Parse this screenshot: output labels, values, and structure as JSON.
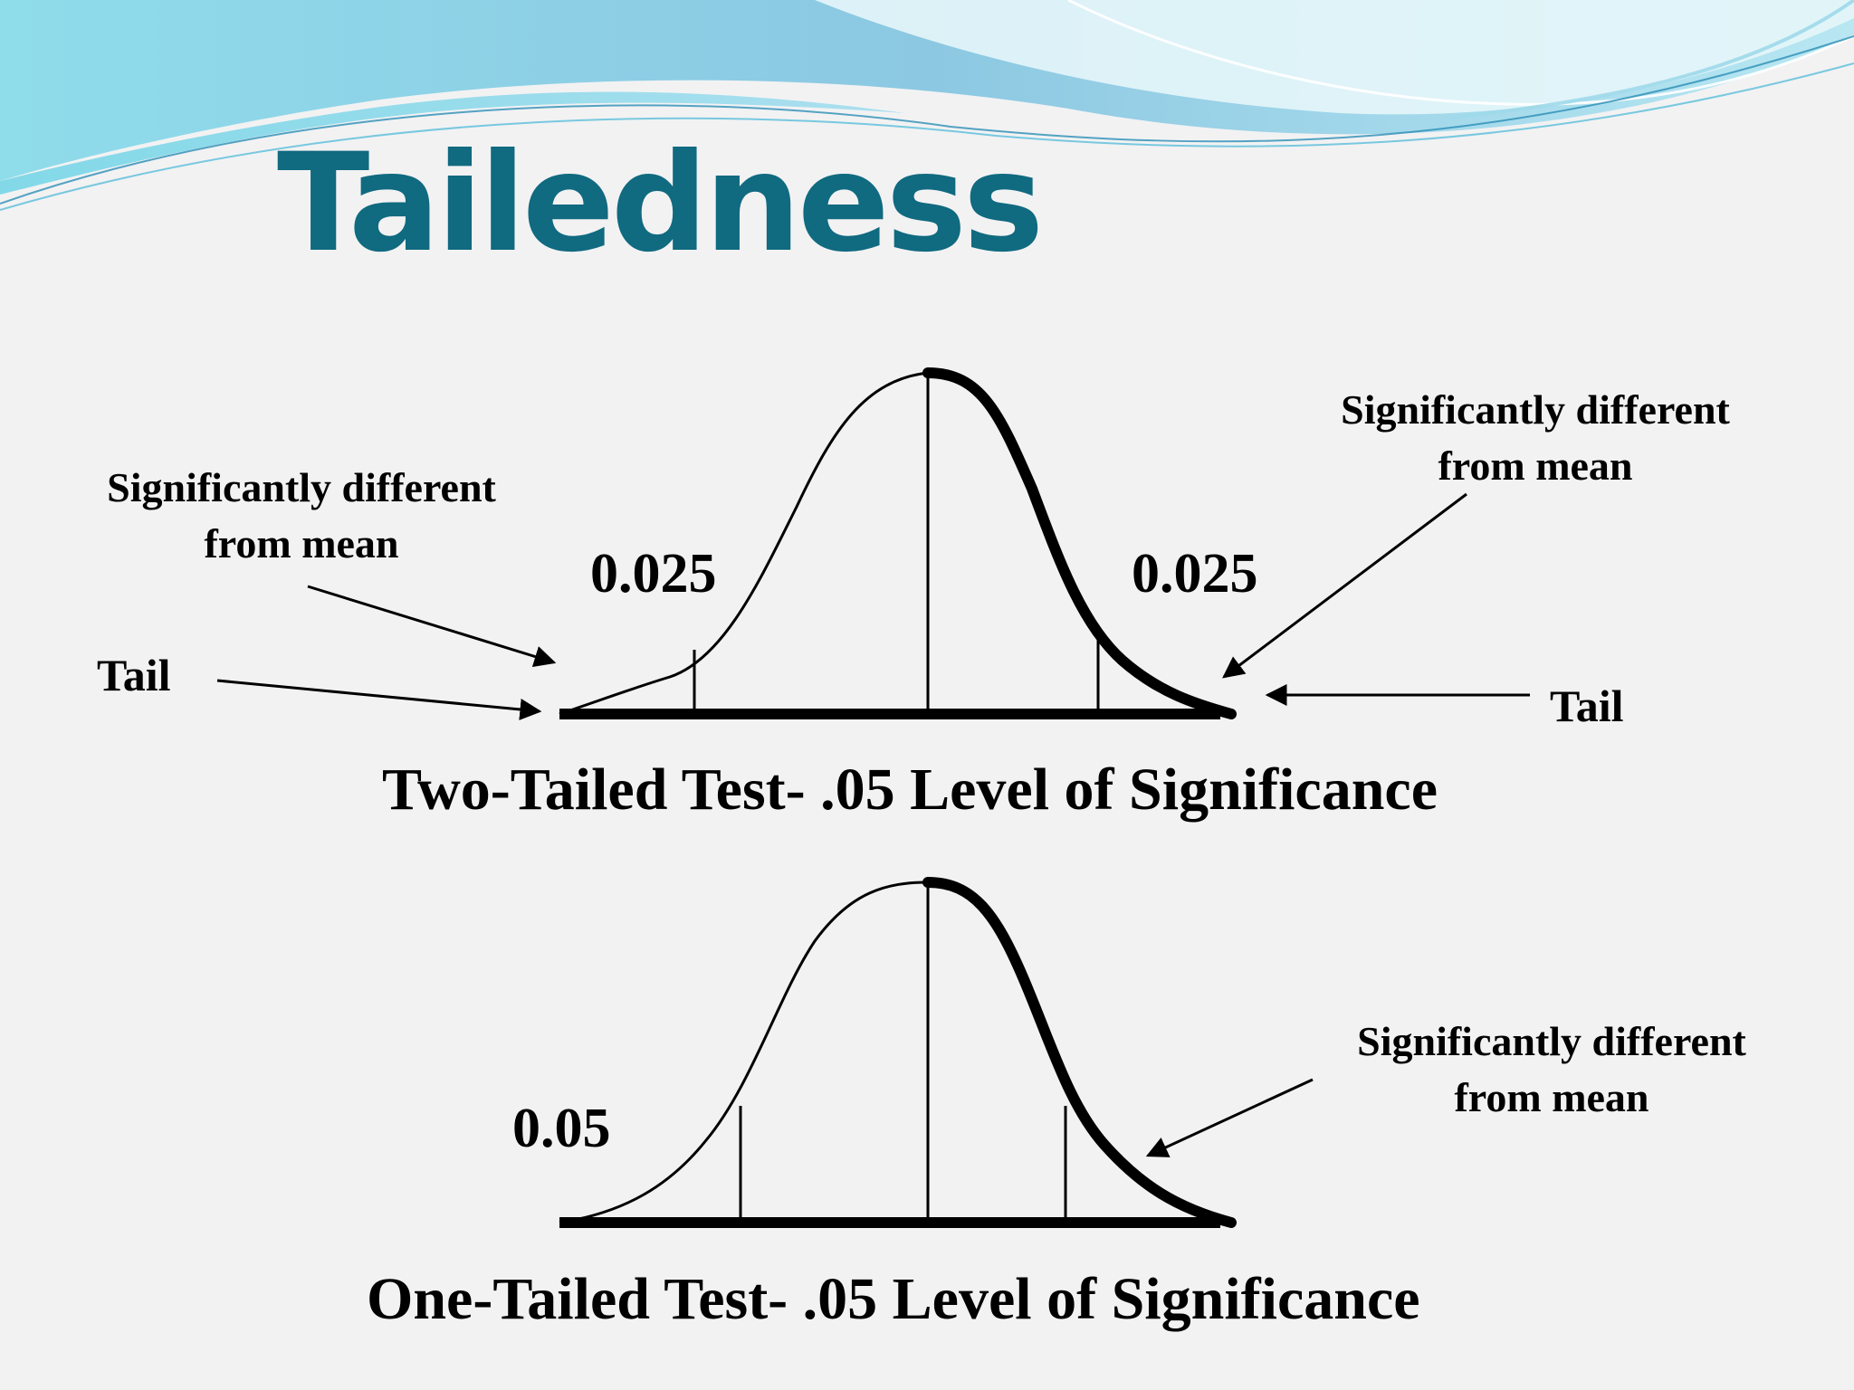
{
  "title": "Tailedness",
  "colors": {
    "title": "#106a80",
    "background": "#f2f2f3",
    "wave_light": "#bfe9f3",
    "wave_mid": "#7fd0e6",
    "wave_dark": "#3a9fc0",
    "curve": "#000000"
  },
  "two_tailed": {
    "left_annotation": [
      "Significantly different",
      "from mean"
    ],
    "right_annotation": [
      "Significantly different",
      "from mean"
    ],
    "left_tail_label": "Tail",
    "right_tail_label": "Tail",
    "left_area": "0.025",
    "right_area": "0.025",
    "caption": "Two-Tailed Test- .05 Level of Significance"
  },
  "one_tailed": {
    "area": "0.05",
    "annotation": [
      "Significantly different",
      "from mean"
    ],
    "caption": "One-Tailed Test- .05 Level of Significance"
  }
}
